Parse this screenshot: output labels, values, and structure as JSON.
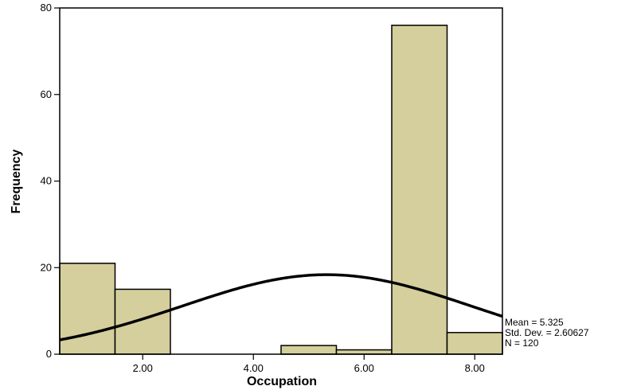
{
  "chart_data": {
    "type": "bar",
    "subtype": "histogram",
    "xlabel": "Occupation",
    "ylabel": "Frequency",
    "xlim": [
      0.5,
      8.5
    ],
    "ylim": [
      0,
      80
    ],
    "x_ticks": [
      2,
      4,
      6,
      8
    ],
    "x_tick_labels": [
      "2.00",
      "4.00",
      "6.00",
      "8.00"
    ],
    "y_ticks": [
      0,
      20,
      40,
      60,
      80
    ],
    "y_tick_labels": [
      "0",
      "20",
      "40",
      "60",
      "80"
    ],
    "bins": [
      {
        "start": 0.5,
        "end": 1.5,
        "value": 21
      },
      {
        "start": 1.5,
        "end": 2.5,
        "value": 15
      },
      {
        "start": 2.5,
        "end": 3.5,
        "value": 0
      },
      {
        "start": 3.5,
        "end": 4.5,
        "value": 0
      },
      {
        "start": 4.5,
        "end": 5.5,
        "value": 2
      },
      {
        "start": 5.5,
        "end": 6.5,
        "value": 1
      },
      {
        "start": 6.5,
        "end": 7.5,
        "value": 76
      },
      {
        "start": 7.5,
        "end": 8.5,
        "value": 5
      }
    ],
    "normal_curve": {
      "mean": 5.325,
      "std": 2.60627,
      "n": 120,
      "bin_width": 1
    },
    "stats": {
      "mean": "Mean = 5.325",
      "std": "Std. Dev. = 2.60627",
      "n": "N = 120"
    },
    "bar_color": "#d4cf9c",
    "edge_color": "#000000",
    "grid": false
  }
}
